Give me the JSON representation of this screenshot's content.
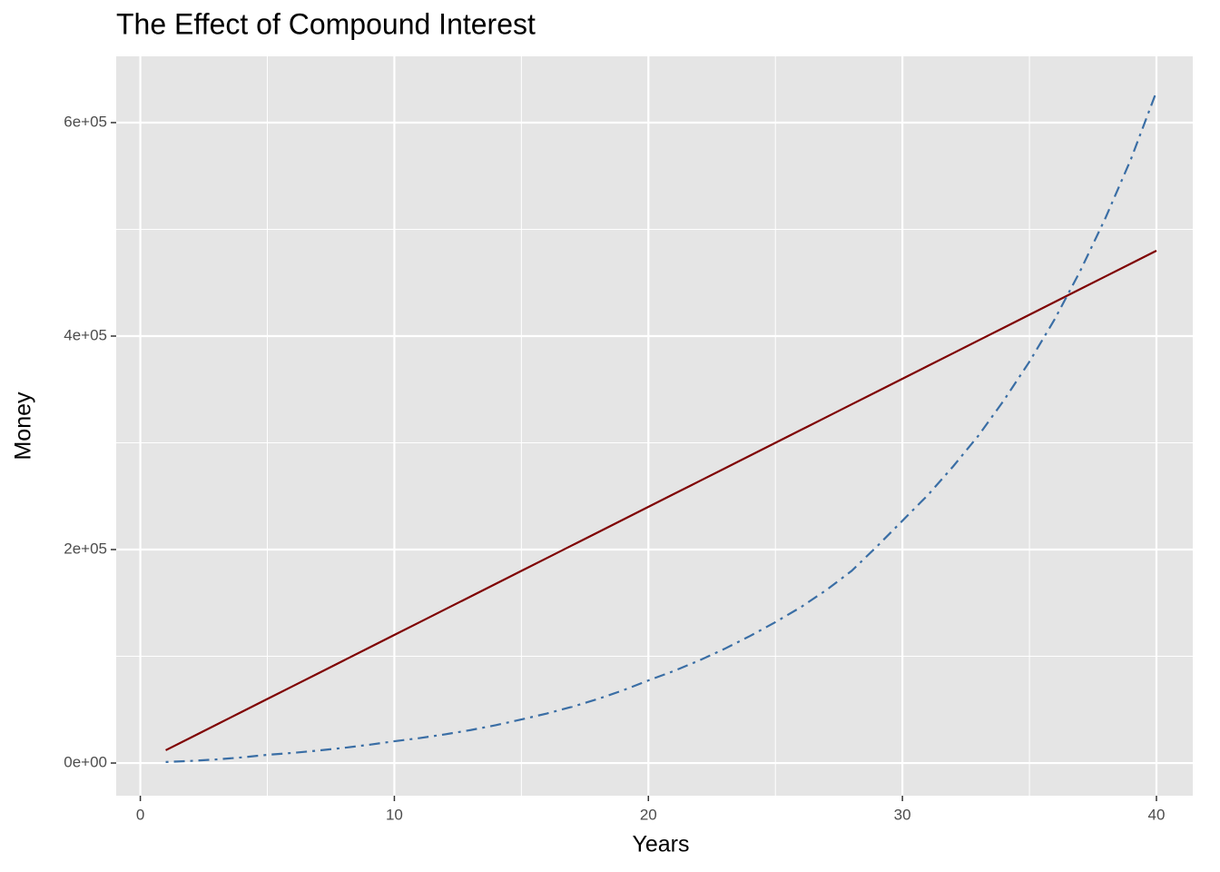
{
  "chart_data": {
    "type": "line",
    "title": "The Effect of Compound Interest",
    "x_label": "Years",
    "y_label": "Money",
    "x": [
      1,
      2,
      3,
      4,
      5,
      6,
      7,
      8,
      9,
      10,
      11,
      12,
      13,
      14,
      15,
      16,
      17,
      18,
      19,
      20,
      21,
      22,
      23,
      24,
      25,
      26,
      27,
      28,
      29,
      30,
      31,
      32,
      33,
      34,
      35,
      36,
      37,
      38,
      39,
      40
    ],
    "series": [
      {
        "color": "#7f0000",
        "linetype": "solid",
        "values": [
          12000,
          24000,
          36000,
          48000,
          60000,
          72000,
          84000,
          96000,
          108000,
          120000,
          132000,
          144000,
          156000,
          168000,
          180000,
          192000,
          204000,
          216000,
          228000,
          240000,
          252000,
          264000,
          276000,
          288000,
          300000,
          312000,
          324000,
          336000,
          348000,
          360000,
          372000,
          384000,
          396000,
          408000,
          420000,
          432000,
          444000,
          456000,
          468000,
          480000
        ]
      },
      {
        "color": "#3a6ea5",
        "linetype": "dotdash",
        "values": [
          1000,
          2000,
          3400,
          5300,
          7700,
          9500,
          11700,
          14200,
          17100,
          20400,
          23400,
          26900,
          30900,
          35500,
          40800,
          46400,
          52700,
          59900,
          68100,
          77400,
          86200,
          96100,
          107000,
          119000,
          132000,
          146000,
          162000,
          180000,
          203000,
          227000,
          251000,
          278000,
          307000,
          340000,
          376000,
          416000,
          461000,
          511000,
          566000,
          629000
        ]
      }
    ],
    "xlim": [
      -0.95,
      41.43
    ],
    "ylim": [
      -30600,
      662100
    ],
    "xticks": [
      0,
      10,
      20,
      30,
      40
    ],
    "x_minor_grid": [
      5,
      15,
      25,
      35
    ],
    "yticks": [
      {
        "value": 0,
        "label": "0e+00"
      },
      {
        "value": 200000,
        "label": "2e+05"
      },
      {
        "value": 400000,
        "label": "4e+05"
      },
      {
        "value": 600000,
        "label": "6e+05"
      }
    ],
    "y_minor_grid": [
      100000,
      300000,
      500000
    ],
    "grid": true,
    "panel_color": "#e5e5e5"
  }
}
